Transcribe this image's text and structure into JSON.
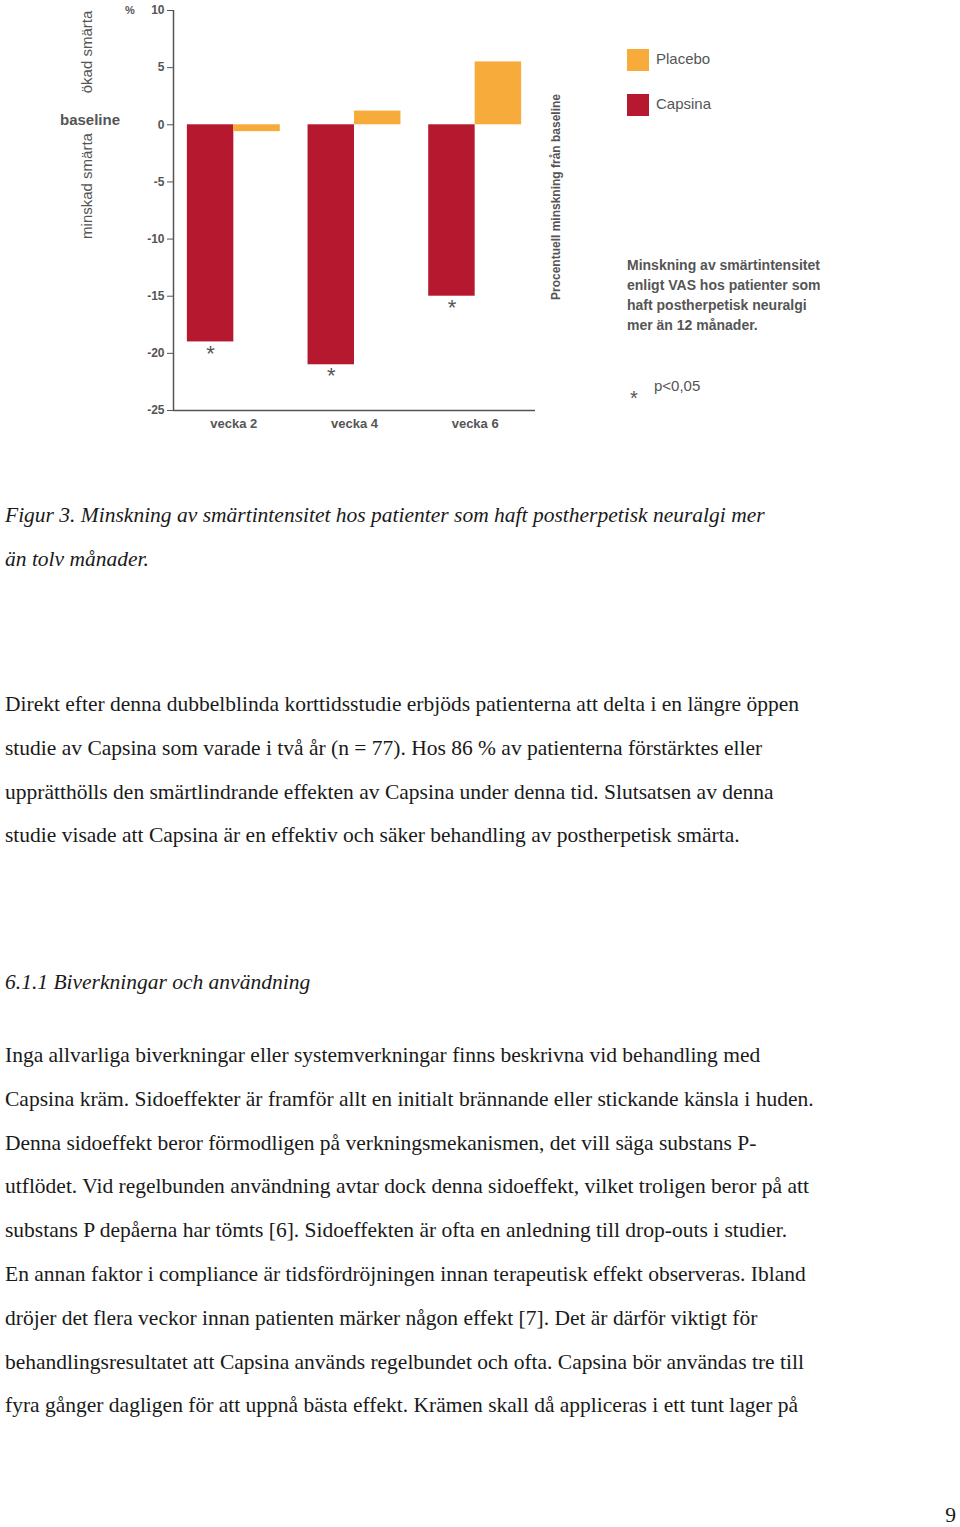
{
  "chart_data": {
    "type": "bar",
    "categories": [
      "vecka 2",
      "vecka 4",
      "vecka 6"
    ],
    "series": [
      {
        "name": "Capsina",
        "color": "#b5182f",
        "values": [
          -19,
          -21,
          -15
        ],
        "significance": [
          "*",
          "*",
          "*"
        ]
      },
      {
        "name": "Placebo",
        "color": "#f7ab3b",
        "values": [
          -0.6,
          1.2,
          5.5
        ]
      }
    ],
    "ylim": [
      -25,
      10
    ],
    "yticks": [
      -25,
      -20,
      -15,
      -10,
      -5,
      0,
      5,
      10
    ],
    "ylabel": "Procentuell minskning från baseline",
    "grid": false,
    "legend": "top-right",
    "annotations": {
      "unit": "%",
      "baseline": "baseline",
      "increase": "ökad smärta",
      "decrease": "minskad smärta",
      "description": [
        "Minskning av smärtintensitet",
        "enligt VAS hos patienter som",
        "haft postherpetisk neuralgi",
        "mer än 12 månader."
      ],
      "significance_symbol": "*",
      "significance_text": "p<0,05"
    }
  },
  "document": {
    "figure_caption": [
      "Figur 3. Minskning av smärtintensitet hos patienter som haft postherpetisk neuralgi mer",
      "än tolv månader."
    ],
    "paragraph_1": [
      "Direkt efter denna dubbelblinda korttidsstudie erbjöds patienterna att delta i en längre öppen",
      "studie av Capsina som varade i två år (n = 77). Hos 86 % av patienterna förstärktes eller",
      "upprätthölls den smärtlindrande effekten av Capsina under denna tid. Slutsatsen av denna",
      "studie visade att Capsina är en effektiv och säker behandling av postherpetisk smärta."
    ],
    "section_heading": "6.1.1 Biverkningar och användning",
    "paragraph_2": [
      "Inga allvarliga biverkningar eller systemverkningar finns beskrivna vid behandling med",
      "Capsina kräm. Sidoeffekter är framför allt en initialt brännande eller stickande känsla i huden.",
      "Denna sidoeffekt beror förmodligen på verkningsmekanismen, det vill säga substans P-",
      "utflödet. Vid regelbunden användning avtar dock denna sidoeffekt, vilket troligen beror på att",
      "substans P depåerna har tömts [6]. Sidoeffekten är ofta en anledning till drop-outs i studier.",
      "En annan faktor i compliance är tidsfördröjningen innan terapeutisk effekt observeras. Ibland",
      "dröjer det flera veckor innan patienten märker någon effekt [7]. Det är därför viktigt för",
      "behandlingsresultatet att Capsina används regelbundet och ofta. Capsina bör användas tre till",
      "fyra gånger dagligen för att uppnå bästa effekt. Krämen skall då appliceras i ett tunt lager på"
    ],
    "page_number": 9
  }
}
